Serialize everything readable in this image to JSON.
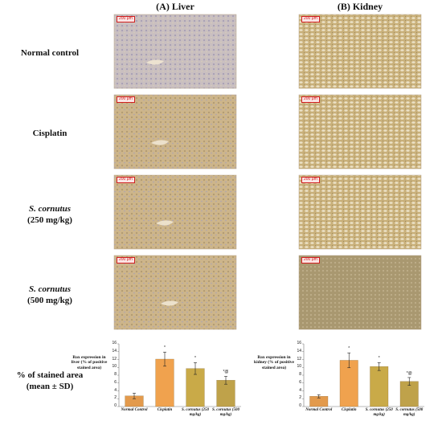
{
  "column_headers": [
    "(A) Liver",
    "(B) Kidney"
  ],
  "row_labels": [
    {
      "name": "Normal control"
    },
    {
      "name": "Cisplatin"
    },
    {
      "name": "S. cornutus",
      "dose": "(250 mg/kg)"
    },
    {
      "name": "S. cornutus",
      "dose": "(500 mg/kg)"
    },
    {
      "name": "% of stained area",
      "dose": "(mean ± SD)"
    }
  ],
  "micrographs": [
    {
      "scale": "200 μm"
    },
    {
      "scale": "200 μm"
    },
    {
      "scale": "200 μm"
    },
    {
      "scale": "200 μm"
    },
    {
      "scale": "200 μm"
    },
    {
      "scale": "200 μm"
    },
    {
      "scale": "200 μm"
    },
    {
      "scale": "200 μm"
    }
  ],
  "chart_data": [
    {
      "type": "bar",
      "y_label": "Bax expression in liver (% of positive stained area)",
      "categories": [
        "Normal Control",
        "Cisplatin",
        "S. cornutus (250 mg/kg)",
        "S. cornutus (500 mg/kg)"
      ],
      "values": [
        2.7,
        12.1,
        9.7,
        6.7
      ],
      "errors": [
        0.7,
        1.8,
        1.5,
        1.0
      ],
      "annotations": [
        null,
        "*",
        "*",
        "*@"
      ],
      "colors": [
        "#e39a4c",
        "#f0a24e",
        "#c9aa48",
        "#bfa24a"
      ],
      "ylim": [
        0,
        16
      ],
      "yticks": [
        0,
        2,
        4,
        6,
        8,
        10,
        12,
        14,
        16
      ]
    },
    {
      "type": "bar",
      "y_label": "Bax expression in kidney (% of positive stained area)",
      "categories": [
        "Normal Control",
        "Cisplatin",
        "S. cornutus (250 mg/kg)",
        "S. cornutus (500 mg/kg)"
      ],
      "values": [
        2.6,
        11.8,
        10.2,
        6.4
      ],
      "errors": [
        0.4,
        1.9,
        1.0,
        1.0
      ],
      "annotations": [
        null,
        "*",
        "*",
        "*@"
      ],
      "colors": [
        "#e39a4c",
        "#f0a24e",
        "#c9aa48",
        "#bfa24a"
      ],
      "ylim": [
        0,
        16
      ],
      "yticks": [
        0,
        2,
        4,
        6,
        8,
        10,
        12,
        14,
        16
      ]
    }
  ]
}
